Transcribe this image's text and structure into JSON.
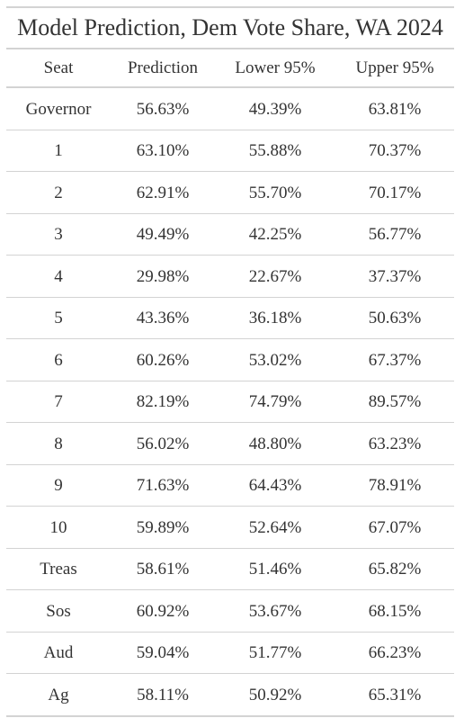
{
  "table": {
    "title": "Model Prediction, Dem Vote Share, WA 2024",
    "columns": [
      "Seat",
      "Prediction",
      "Lower 95%",
      "Upper 95%"
    ],
    "rows": [
      [
        "Governor",
        "56.63%",
        "49.39%",
        "63.81%"
      ],
      [
        "1",
        "63.10%",
        "55.88%",
        "70.37%"
      ],
      [
        "2",
        "62.91%",
        "55.70%",
        "70.17%"
      ],
      [
        "3",
        "49.49%",
        "42.25%",
        "56.77%"
      ],
      [
        "4",
        "29.98%",
        "22.67%",
        "37.37%"
      ],
      [
        "5",
        "43.36%",
        "36.18%",
        "50.63%"
      ],
      [
        "6",
        "60.26%",
        "53.02%",
        "67.37%"
      ],
      [
        "7",
        "82.19%",
        "74.79%",
        "89.57%"
      ],
      [
        "8",
        "56.02%",
        "48.80%",
        "63.23%"
      ],
      [
        "9",
        "71.63%",
        "64.43%",
        "78.91%"
      ],
      [
        "10",
        "59.89%",
        "52.64%",
        "67.07%"
      ],
      [
        "Treas",
        "58.61%",
        "51.46%",
        "65.82%"
      ],
      [
        "Sos",
        "60.92%",
        "53.67%",
        "68.15%"
      ],
      [
        "Aud",
        "59.04%",
        "51.77%",
        "66.23%"
      ],
      [
        "Ag",
        "58.11%",
        "50.92%",
        "65.31%"
      ]
    ]
  }
}
